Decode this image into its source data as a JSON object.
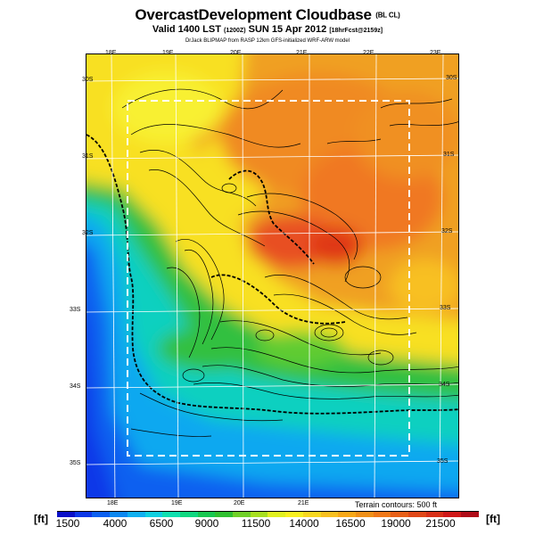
{
  "header": {
    "title": "OvercastDevelopment Cloudbase",
    "title_tag": "(BL CL)",
    "subtitle": "Valid 1400 LST",
    "subtitle_tag": "(1200Z)",
    "subtitle_date": "SUN 15 Apr 2012",
    "subtitle_fcst": "[18hrFcst@2159z]",
    "credit": "DrJack BLIPMAP from RASP 12km GFS-initialized WRF-ARW model"
  },
  "map": {
    "lon_labels_top": [
      "18E",
      "19E",
      "20E",
      "21E",
      "22E",
      "23E"
    ],
    "lon_labels_bottom": [
      "18E",
      "19E",
      "20E",
      "21E"
    ],
    "lat_labels_left": [
      "30S",
      "31S",
      "32S",
      "33S",
      "34S",
      "35S"
    ],
    "lat_labels_right": [
      "30S",
      "31S",
      "32S",
      "33S",
      "34S",
      "35S"
    ],
    "terrain_note": "Terrain contours: 500 ft",
    "colors": {
      "low": "#1030d8",
      "mid": "#10c8a0",
      "green": "#20c030",
      "yellow": "#f8e020",
      "orange": "#f09820",
      "red": "#e03818"
    }
  },
  "colorbar": {
    "unit_left": "[ft]",
    "unit_right": "[ft]",
    "tick_labels": [
      "1500",
      "4000",
      "6500",
      "9000",
      "11500",
      "14000",
      "16500",
      "19000",
      "21500"
    ],
    "swatches": [
      "#0a10c8",
      "#0c38e8",
      "#0c60f0",
      "#0c88f0",
      "#10b0f0",
      "#10d0e0",
      "#10e0b0",
      "#10d880",
      "#18c850",
      "#30c030",
      "#70d028",
      "#a8e020",
      "#e0f020",
      "#f8f020",
      "#f8d820",
      "#f8c020",
      "#f8a818",
      "#f09018",
      "#f07818",
      "#e86018",
      "#e04818",
      "#d83018",
      "#d01818",
      "#b00c18"
    ]
  }
}
